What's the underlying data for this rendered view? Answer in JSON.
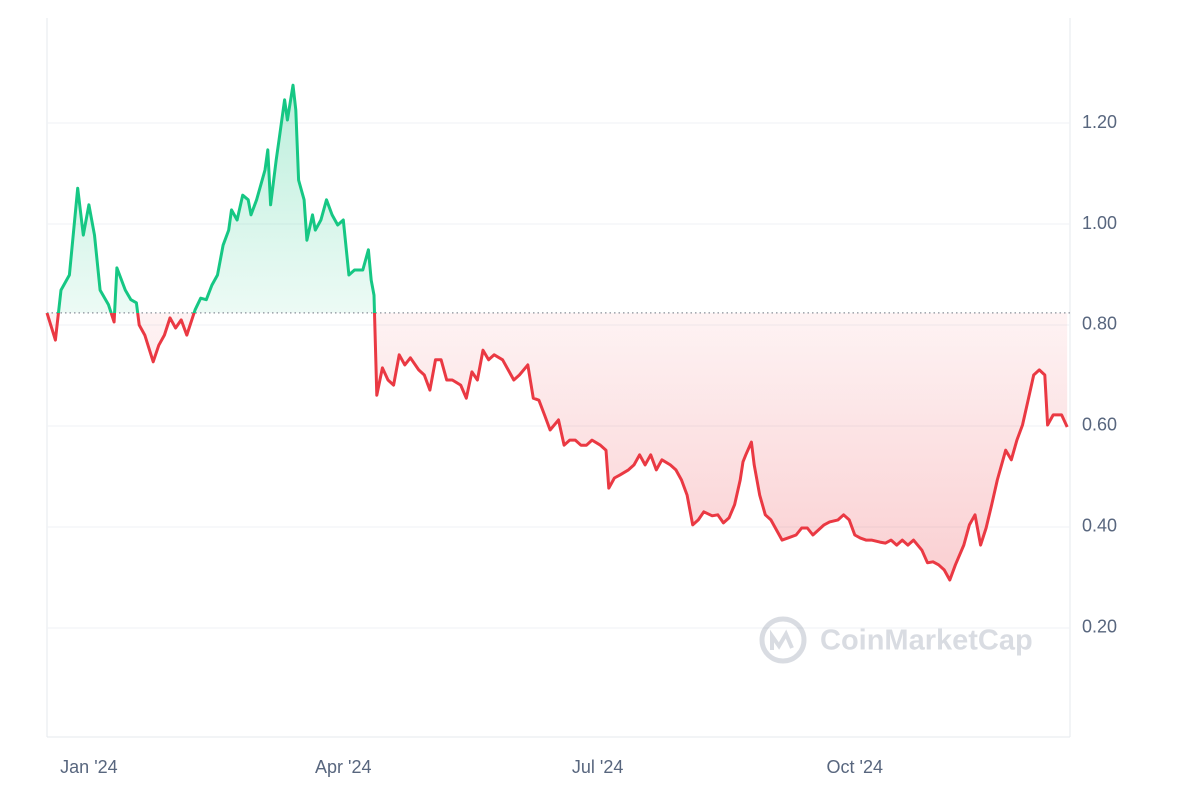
{
  "chart_data": {
    "type": "line",
    "watermark": "CoinMarketCap",
    "x": [
      0,
      3,
      5,
      8,
      11,
      13,
      15,
      17,
      19,
      22,
      24,
      25,
      28,
      30,
      32,
      33,
      35,
      38,
      40,
      42,
      44,
      46,
      48,
      50,
      53,
      55,
      57,
      59,
      61,
      63,
      65,
      66,
      68,
      70,
      72,
      73,
      75,
      78,
      79,
      80,
      82,
      83,
      85,
      86,
      88,
      89,
      90,
      92,
      93,
      95,
      96,
      98,
      100,
      102,
      104,
      106,
      108,
      110,
      113,
      115,
      116,
      117,
      118,
      120,
      122,
      124,
      126,
      128,
      130,
      133,
      135,
      137,
      139,
      141,
      143,
      145,
      148,
      150,
      152,
      154,
      156,
      158,
      160,
      163,
      165,
      167,
      169,
      172,
      174,
      176,
      178,
      180,
      183,
      185,
      187,
      189,
      191,
      193,
      195,
      198,
      200,
      201,
      203,
      205,
      208,
      210,
      212,
      214,
      216,
      218,
      220,
      223,
      225,
      227,
      229,
      231,
      233,
      235,
      238,
      240,
      242,
      244,
      246,
      248,
      249,
      250,
      252,
      253,
      255,
      257,
      259,
      261,
      263,
      265,
      268,
      270,
      272,
      274,
      276,
      278,
      280,
      283,
      285,
      287,
      289,
      291,
      293,
      295,
      298,
      300,
      302,
      304,
      306,
      308,
      310,
      313,
      315,
      317,
      319,
      321,
      323,
      325,
      328,
      330,
      332,
      334,
      336,
      338,
      340,
      343,
      345,
      347,
      349,
      351,
      353,
      355,
      357,
      358,
      360,
      363,
      365
    ],
    "series": [
      {
        "values": [
          0.824,
          0.77,
          0.869,
          0.899,
          1.071,
          0.978,
          1.038,
          0.978,
          0.869,
          0.84,
          0.806,
          0.913,
          0.869,
          0.85,
          0.844,
          0.8,
          0.78,
          0.727,
          0.76,
          0.78,
          0.814,
          0.794,
          0.81,
          0.78,
          0.83,
          0.853,
          0.85,
          0.879,
          0.899,
          0.958,
          0.988,
          1.028,
          1.008,
          1.057,
          1.048,
          1.018,
          1.048,
          1.107,
          1.147,
          1.038,
          1.127,
          1.166,
          1.246,
          1.206,
          1.275,
          1.226,
          1.087,
          1.048,
          0.968,
          1.018,
          0.988,
          1.008,
          1.048,
          1.018,
          0.998,
          1.008,
          0.899,
          0.909,
          0.909,
          0.949,
          0.889,
          0.859,
          0.661,
          0.715,
          0.691,
          0.681,
          0.741,
          0.721,
          0.735,
          0.711,
          0.701,
          0.671,
          0.731,
          0.731,
          0.691,
          0.691,
          0.681,
          0.655,
          0.707,
          0.691,
          0.75,
          0.731,
          0.741,
          0.731,
          0.711,
          0.691,
          0.701,
          0.721,
          0.655,
          0.651,
          0.622,
          0.592,
          0.612,
          0.562,
          0.572,
          0.572,
          0.562,
          0.562,
          0.572,
          0.562,
          0.552,
          0.477,
          0.497,
          0.503,
          0.513,
          0.523,
          0.543,
          0.523,
          0.543,
          0.513,
          0.533,
          0.523,
          0.513,
          0.493,
          0.463,
          0.404,
          0.414,
          0.43,
          0.422,
          0.424,
          0.408,
          0.418,
          0.444,
          0.493,
          0.529,
          0.543,
          0.568,
          0.523,
          0.463,
          0.424,
          0.414,
          0.394,
          0.374,
          0.378,
          0.384,
          0.398,
          0.398,
          0.384,
          0.394,
          0.404,
          0.41,
          0.414,
          0.424,
          0.414,
          0.384,
          0.378,
          0.374,
          0.374,
          0.37,
          0.368,
          0.374,
          0.364,
          0.374,
          0.364,
          0.374,
          0.354,
          0.329,
          0.331,
          0.325,
          0.315,
          0.295,
          0.325,
          0.364,
          0.404,
          0.424,
          0.364,
          0.398,
          0.444,
          0.493,
          0.552,
          0.533,
          0.572,
          0.602,
          0.651,
          0.701,
          0.711,
          0.701,
          0.602,
          0.622,
          0.622,
          0.598
        ]
      }
    ],
    "baseline": 0.824,
    "up_color": "#16c784",
    "down_color": "#ea3943",
    "xlim": [
      0,
      366
    ],
    "xticks": [
      {
        "value": 15,
        "label": "Jan '24"
      },
      {
        "value": 106,
        "label": "Apr '24"
      },
      {
        "value": 197,
        "label": "Jul '24"
      },
      {
        "value": 289,
        "label": "Oct '24"
      }
    ],
    "ylim": [
      -0.016,
      1.408
    ],
    "yticks": [
      {
        "value": 0.2,
        "label": "0.20"
      },
      {
        "value": 0.4,
        "label": "0.40"
      },
      {
        "value": 0.6,
        "label": "0.60"
      },
      {
        "value": 0.8,
        "label": "0.80"
      },
      {
        "value": 1.0,
        "label": "1.00"
      },
      {
        "value": 1.2,
        "label": "1.20"
      }
    ],
    "grid": true
  }
}
